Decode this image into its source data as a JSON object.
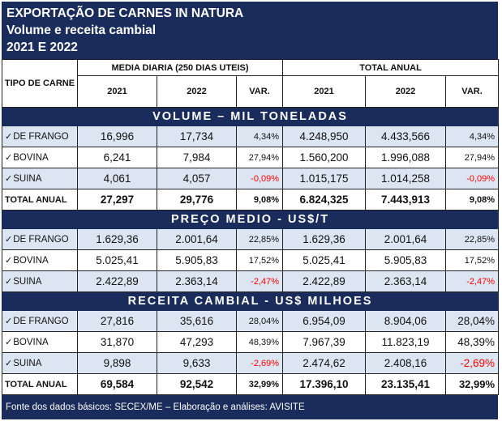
{
  "title": {
    "line1": "EXPORTAÇÃO DE CARNES IN NATURA",
    "line2": "Volume e receita cambial",
    "line3": "2021 E 2022"
  },
  "header": {
    "tipo": "TIPO DE CARNE",
    "media": "MEDIA DIARIA (250 DIAS UTEIS)",
    "total": "TOTAL ANUAL",
    "y2021": "2021",
    "y2022": "2022",
    "var": "VAR."
  },
  "check_mark": "✓",
  "sections": [
    {
      "title": "VOLUME – MIL TONELADAS",
      "rows": [
        {
          "label": "DE FRANGO",
          "m2021": "16,996",
          "m2022": "17,734",
          "mvar": "4,34%",
          "t2021": "4.248,950",
          "t2022": "4.433,566",
          "tvar": "4,34%"
        },
        {
          "label": "BOVINA",
          "m2021": "6,241",
          "m2022": "7,984",
          "mvar": "27,94%",
          "t2021": "1.560,200",
          "t2022": "1.996,088",
          "tvar": "27,94%"
        },
        {
          "label": "SUINA",
          "m2021": "4,061",
          "m2022": "4,057",
          "mvar": "-0,09%",
          "t2021": "1.015,175",
          "t2022": "1.014,258",
          "tvar": "-0,09%"
        }
      ],
      "total": {
        "label": "TOTAL ANUAL",
        "m2021": "27,297",
        "m2022": "29,776",
        "mvar": "9,08%",
        "t2021": "6.824,325",
        "t2022": "7.443,913",
        "tvar": "9,08%"
      }
    },
    {
      "title": "PREÇO MEDIO - US$/T",
      "rows": [
        {
          "label": "DE FRANGO",
          "m2021": "1.629,36",
          "m2022": "2.001,64",
          "mvar": "22,85%",
          "t2021": "1.629,36",
          "t2022": "2.001,64",
          "tvar": "22,85%"
        },
        {
          "label": "BOVINA",
          "m2021": "5.025,41",
          "m2022": "5.905,83",
          "mvar": "17,52%",
          "t2021": "5.025,41",
          "t2022": "5.905,83",
          "tvar": "17,52%"
        },
        {
          "label": "SUINA",
          "m2021": "2.422,89",
          "m2022": "2.363,14",
          "mvar": "-2,47%",
          "t2021": "2.422,89",
          "t2022": "2.363,14",
          "tvar": "-2,47%"
        }
      ]
    },
    {
      "title": "RECEITA CAMBIAL - US$ MILHOES",
      "rows": [
        {
          "label": "DE FRANGO",
          "m2021": "27,816",
          "m2022": "35,616",
          "mvar": "28,04%",
          "t2021": "6.954,09",
          "t2022": "8.904,06",
          "tvar": "28,04%"
        },
        {
          "label": "BOVINA",
          "m2021": "31,870",
          "m2022": "47,293",
          "mvar": "48,39%",
          "t2021": "7.967,39",
          "t2022": "11.823,19",
          "tvar": "48,39%"
        },
        {
          "label": "SUINA",
          "m2021": "9,898",
          "m2022": "9,633",
          "mvar": "-2,69%",
          "t2021": "2.474,62",
          "t2022": "2.408,16",
          "tvar": "-2,69%"
        }
      ],
      "total": {
        "label": "TOTAL ANUAL",
        "m2021": "69,584",
        "m2022": "92,542",
        "mvar": "32,99%",
        "t2021": "17.396,10",
        "t2022": "23.135,41",
        "tvar": "32,99%"
      }
    }
  ],
  "footer": "Fonte dos dados básicos: SECEX/ME – Elaboração e análises: AVISITE",
  "colors": {
    "navy": "#1a2c5b",
    "alt_row": "#dce6f2",
    "negative": "#ff0000"
  }
}
